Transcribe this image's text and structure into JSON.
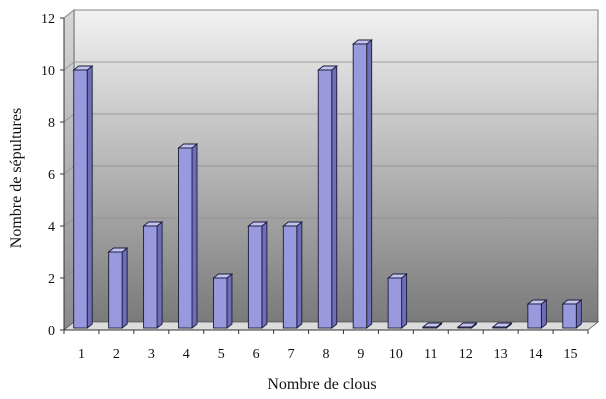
{
  "chart_data": {
    "type": "bar",
    "xlabel": "Nombre de clous",
    "ylabel": "Nombre de sépultures",
    "categories": [
      "1",
      "2",
      "3",
      "4",
      "5",
      "6",
      "7",
      "8",
      "9",
      "10",
      "11",
      "12",
      "13",
      "14",
      "15"
    ],
    "values": [
      10,
      3,
      4,
      7,
      2,
      4,
      4,
      10,
      11,
      2,
      0,
      0,
      0,
      1,
      1
    ],
    "yticks": [
      "0",
      "2",
      "4",
      "6",
      "8",
      "10",
      "12"
    ],
    "ylim": [
      0,
      12
    ],
    "grid": true,
    "three_d": true,
    "colors": {
      "bar_front": "#9999dd",
      "bar_side": "#6e6eb8",
      "bar_top": "#c4c4f0",
      "bar_stroke": "#1a1a3a",
      "wall_top": "#f2f2f2",
      "wall_bottom": "#7a7a7a",
      "floor": "#dcdcdc"
    }
  }
}
